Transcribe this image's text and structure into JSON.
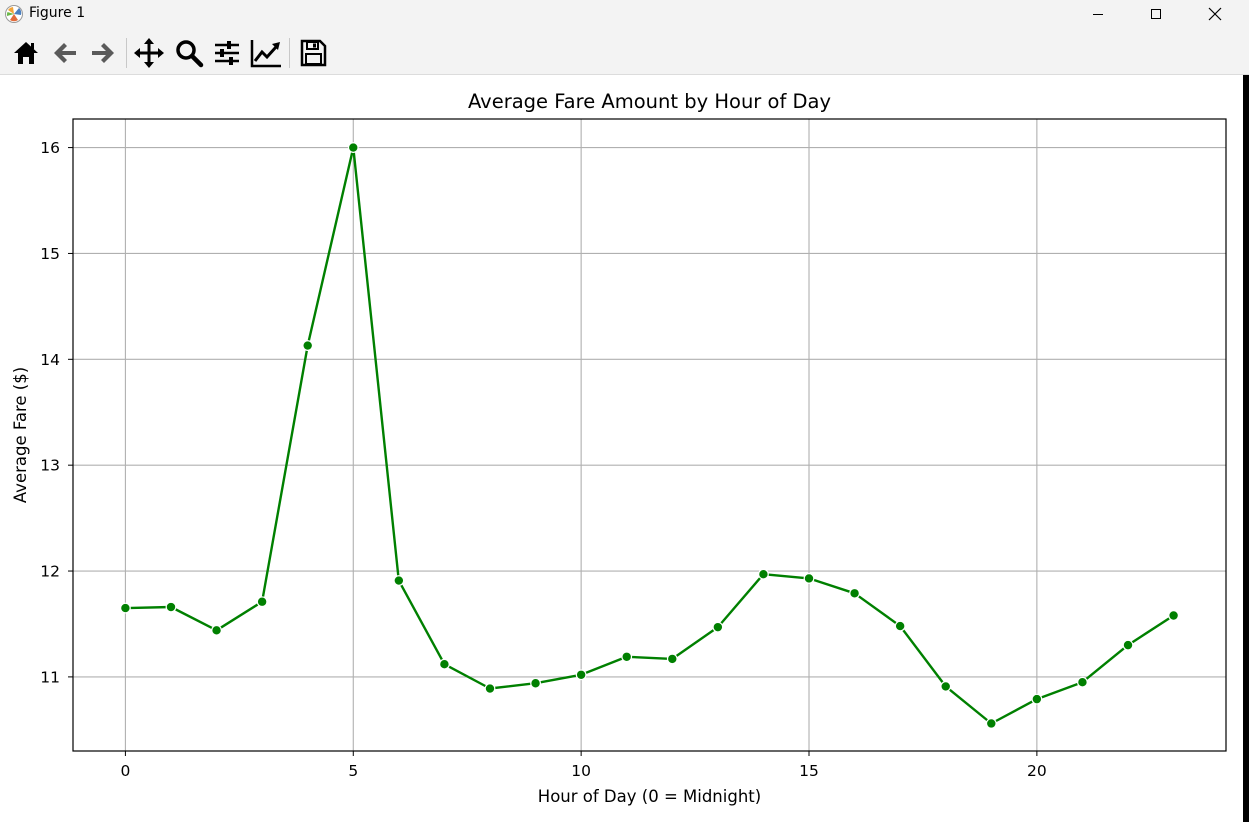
{
  "window": {
    "title": "Figure 1",
    "controls": [
      "minimize",
      "maximize",
      "close"
    ]
  },
  "toolbar": {
    "buttons": [
      {
        "name": "home-icon",
        "tooltip": "Reset original view"
      },
      {
        "name": "back-icon",
        "tooltip": "Back to previous view"
      },
      {
        "name": "forward-icon",
        "tooltip": "Forward to next view"
      },
      {
        "name": "pan-icon",
        "tooltip": "Pan axes"
      },
      {
        "name": "zoom-icon",
        "tooltip": "Zoom to rectangle"
      },
      {
        "name": "subplots-icon",
        "tooltip": "Configure subplots"
      },
      {
        "name": "edit-axis-icon",
        "tooltip": "Edit axis, curve and image parameters"
      },
      {
        "name": "save-icon",
        "tooltip": "Save the figure"
      }
    ]
  },
  "chart_data": {
    "type": "line",
    "title": "Average Fare Amount by Hour of Day",
    "xlabel": "Hour of Day (0 = Midnight)",
    "ylabel": "Average Fare ($)",
    "x": [
      0,
      1,
      2,
      3,
      4,
      5,
      6,
      7,
      8,
      9,
      10,
      11,
      12,
      13,
      14,
      15,
      16,
      17,
      18,
      19,
      20,
      21,
      22,
      23
    ],
    "series": [
      {
        "values": [
          11.65,
          11.66,
          11.44,
          11.71,
          14.13,
          16.0,
          11.91,
          11.12,
          10.89,
          10.94,
          11.02,
          11.19,
          11.17,
          11.47,
          11.97,
          11.93,
          11.79,
          11.48,
          10.91,
          10.56,
          10.79,
          10.95,
          11.3,
          11.58
        ],
        "color": "#008000",
        "marker": "circle"
      }
    ],
    "xlim": [
      -1.15,
      24.15
    ],
    "ylim": [
      10.3,
      16.27
    ],
    "xticks": [
      0,
      5,
      10,
      15,
      20
    ],
    "yticks": [
      11,
      12,
      13,
      14,
      15,
      16
    ],
    "grid": true
  }
}
